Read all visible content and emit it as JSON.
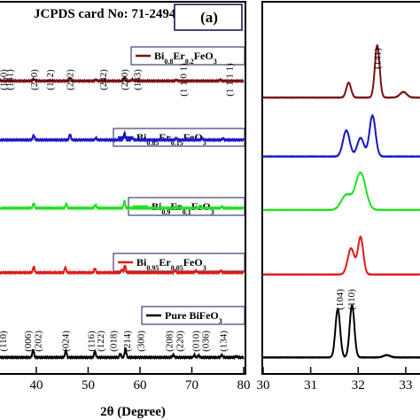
{
  "header": {
    "card_label": "JCPDS card No: 71-2494",
    "panel_label": "(a)"
  },
  "chart_data": [
    {
      "type": "line",
      "panel": "left",
      "xlabel": "2θ (Degree)",
      "ylabel": "",
      "xlim": [
        33,
        80
      ],
      "xticks": [
        40,
        50,
        60,
        70,
        80
      ],
      "grid": false,
      "series": [
        {
          "name": "Bi0.8Er0.2FeO3",
          "color": "#7b1010",
          "level": 0.79,
          "legend": {
            "pre": "Bi",
            "s1": "0.8",
            "mid": "Er",
            "s2": "0.2",
            "post": "FeO",
            "s3": "3"
          },
          "peaks": [
            [
              39.5,
              0.8
            ],
            [
              46.5,
              1.2
            ],
            [
              51.5,
              0.4
            ],
            [
              57,
              1.4
            ],
            [
              58.5,
              0.6
            ],
            [
              67,
              0.4
            ],
            [
              75.5,
              0.4
            ]
          ]
        },
        {
          "name": "Bi0.85Er0.15FeO3",
          "color": "#1515c8",
          "level": 0.63,
          "legend": {
            "pre": "Bi",
            "s1": "0.85",
            "mid": "Er",
            "s2": "0.15",
            "post": "FeO",
            "s3": "3"
          },
          "peaks": [
            [
              39.5,
              1.8
            ],
            [
              46.5,
              2.2
            ],
            [
              51.5,
              0.8
            ],
            [
              57,
              2.6
            ],
            [
              58.5,
              0.9
            ],
            [
              67,
              0.6
            ],
            [
              72,
              0.5
            ],
            [
              76,
              0.5
            ]
          ]
        },
        {
          "name": "Bi0.9Er0.1FeO3",
          "color": "#20e020",
          "level": 0.445,
          "legend": {
            "pre": "Bi",
            "s1": "0.9",
            "mid": "Er",
            "s2": "0.1",
            "post": "FeO",
            "s3": "3"
          },
          "peaks": [
            [
              39.5,
              1.9
            ],
            [
              45.8,
              1.6
            ],
            [
              51.4,
              1.3
            ],
            [
              57,
              2.6
            ],
            [
              67,
              0.8
            ],
            [
              71.5,
              0.7
            ],
            [
              75.8,
              0.6
            ]
          ]
        },
        {
          "name": "Bi0.95Er0.05FeO3",
          "color": "#e01818",
          "level": 0.27,
          "legend": {
            "pre": "Bi",
            "s1": "0.95",
            "mid": "Er",
            "s2": "0.05",
            "post": "FeO",
            "s3": "3"
          },
          "peaks": [
            [
              39.5,
              2.3
            ],
            [
              45.6,
              2.0
            ],
            [
              51.3,
              1.6
            ],
            [
              56.5,
              1.0
            ],
            [
              57.1,
              2.8
            ],
            [
              66.8,
              0.9
            ],
            [
              70.8,
              0.7
            ],
            [
              75.6,
              0.7
            ]
          ]
        },
        {
          "name": "Pure BiFeO3",
          "color": "#000000",
          "level": 0.04,
          "legend": {
            "pre": "Pure BiFeO",
            "s1": "",
            "mid": "",
            "s2": "",
            "post": "",
            "s3": "3"
          },
          "peaks": [
            [
              39.4,
              3.0
            ],
            [
              45.7,
              2.6
            ],
            [
              51.3,
              2.4
            ],
            [
              56.2,
              1.4
            ],
            [
              57.2,
              3.4
            ],
            [
              66.4,
              1.0
            ],
            [
              70.5,
              0.9
            ],
            [
              71.3,
              0.8
            ],
            [
              75.8,
              0.9
            ],
            [
              78.6,
              0.4
            ]
          ]
        }
      ],
      "annotations_top": [
        {
          "text": "(150)",
          "x": 33.6
        },
        {
          "text": "(141)",
          "x": 34.8
        },
        {
          "text": "(210)",
          "x": 39.5
        },
        {
          "text": "(112)",
          "x": 42.6
        },
        {
          "text": "(202)",
          "x": 46.4
        },
        {
          "text": "(242)",
          "x": 52.8
        },
        {
          "text": "(280)",
          "x": 56.9
        },
        {
          "text": "(143)",
          "x": 59.4
        },
        {
          "text": "(1 1 0 1)",
          "x": 68.3
        },
        {
          "text": "(1 1 1 1)",
          "x": 77.2
        }
      ],
      "annotations_bottom": [
        {
          "text": "(110)",
          "x": 33.5
        },
        {
          "text": "(006)",
          "x": 38.3
        },
        {
          "text": "(202)",
          "x": 40.3
        },
        {
          "text": "(024)",
          "x": 45.6
        },
        {
          "text": "(116)",
          "x": 50.5
        },
        {
          "text": "(122)",
          "x": 52.3
        },
        {
          "text": "(018)",
          "x": 54.8
        },
        {
          "text": "(214)",
          "x": 57.4
        },
        {
          "text": "(300)",
          "x": 60.1
        },
        {
          "text": "(208)",
          "x": 65.6
        },
        {
          "text": "(220)",
          "x": 67.6
        },
        {
          "text": "(010)",
          "x": 70.7
        },
        {
          "text": "(036)",
          "x": 72.6
        },
        {
          "text": "(134)",
          "x": 76.0
        }
      ]
    },
    {
      "type": "line",
      "panel": "right",
      "xlabel": "",
      "ylabel": "",
      "xlim": [
        30,
        33.3
      ],
      "xticks": [
        30,
        31,
        32,
        33
      ],
      "grid": false,
      "series": [
        {
          "name": "Bi0.8Er0.2FeO3",
          "color": "#7b1010",
          "level": 0.745,
          "peaks": [
            [
              31.8,
              4,
              0.07
            ],
            [
              32.4,
              14,
              0.07
            ],
            [
              32.95,
              1.5,
              0.1
            ]
          ]
        },
        {
          "name": "Bi0.85Er0.15FeO3",
          "color": "#1515c8",
          "level": 0.585,
          "peaks": [
            [
              31.75,
              7,
              0.1
            ],
            [
              32.05,
              5,
              0.1
            ],
            [
              32.3,
              11,
              0.09
            ]
          ]
        },
        {
          "name": "Bi0.9Er0.1FeO3",
          "color": "#20e020",
          "level": 0.44,
          "peaks": [
            [
              31.75,
              4,
              0.15
            ],
            [
              32.05,
              10,
              0.15
            ]
          ]
        },
        {
          "name": "Bi0.95Er0.05FeO3",
          "color": "#e01818",
          "level": 0.265,
          "peaks": [
            [
              31.85,
              7,
              0.1
            ],
            [
              32.05,
              10,
              0.08
            ]
          ]
        },
        {
          "name": "Pure BiFeO3",
          "color": "#000000",
          "level": 0.04,
          "peaks": [
            [
              31.57,
              13,
              0.07
            ],
            [
              31.87,
              14,
              0.07
            ],
            [
              32.6,
              0.6,
              0.1
            ]
          ]
        }
      ],
      "annotations_top": [
        {
          "text": "(141)",
          "x": 32.4
        }
      ],
      "annotations_bottom": [
        {
          "text": "(104)",
          "x": 31.6
        },
        {
          "text": "(110)",
          "x": 31.85
        }
      ]
    }
  ]
}
